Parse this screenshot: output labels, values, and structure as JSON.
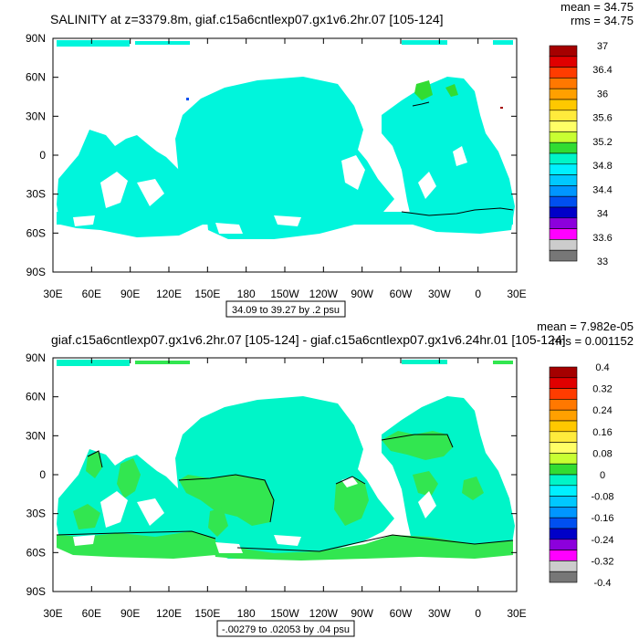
{
  "chart_data": [
    {
      "type": "heatmap",
      "title": "SALINITY at z=3379.8m, giaf.c15a6cntlexp07.gx1v6.2hr.07 [105-124]",
      "stats": {
        "mean": "mean = 34.75",
        "rms": "rms = 34.75"
      },
      "x_ticks": [
        "30E",
        "60E",
        "90E",
        "120E",
        "150E",
        "180",
        "150W",
        "120W",
        "90W",
        "60W",
        "30W",
        "0",
        "30E"
      ],
      "y_ticks": [
        "90N",
        "60N",
        "30N",
        "0",
        "30S",
        "60S",
        "90S"
      ],
      "xlim_deg": [
        30,
        390
      ],
      "ylim_deg": [
        -90,
        90
      ],
      "contour_info": "34.09 to 39.27 by .2 psu",
      "colorbar": {
        "labels": [
          "37",
          "36.4",
          "36",
          "35.6",
          "35.2",
          "34.8",
          "34.4",
          "34",
          "33.6",
          "33"
        ],
        "colors": [
          "#a50000",
          "#e00000",
          "#ff3c00",
          "#ff7800",
          "#ffa000",
          "#ffc800",
          "#ffeb3c",
          "#ffff66",
          "#c8ff32",
          "#32dc32",
          "#00f5c8",
          "#00f0ff",
          "#00c8ff",
          "#0096ff",
          "#0050f0",
          "#0000c8",
          "#8c00dc",
          "#ff00ff",
          "#cccccc",
          "#777777"
        ]
      },
      "dominant_value": 34.8,
      "dominant_color": "#00f5dc"
    },
    {
      "type": "heatmap",
      "title": "giaf.c15a6cntlexp07.gx1v6.2hr.07 [105-124] - giaf.c15a6cntlexp07.gx1v6.24hr.01 [105-124]",
      "stats": {
        "mean": "mean = 7.982e-05",
        "rms": "rms = 0.001152"
      },
      "x_ticks": [
        "30E",
        "60E",
        "90E",
        "120E",
        "150E",
        "180",
        "150W",
        "120W",
        "90W",
        "60W",
        "30W",
        "0",
        "30E"
      ],
      "y_ticks": [
        "90N",
        "60N",
        "30N",
        "0",
        "30S",
        "60S",
        "90S"
      ],
      "xlim_deg": [
        30,
        390
      ],
      "ylim_deg": [
        -90,
        90
      ],
      "contour_info": "-.00279 to .02053 by .04 psu",
      "colorbar": {
        "labels": [
          "0.4",
          "0.32",
          "0.24",
          "0.16",
          "0.08",
          "0",
          "-0.08",
          "-0.16",
          "-0.24",
          "-0.32",
          "-0.4"
        ],
        "colors": [
          "#a50000",
          "#e00000",
          "#ff3c00",
          "#ff7800",
          "#ffa000",
          "#ffc800",
          "#ffeb3c",
          "#ffff66",
          "#c8ff32",
          "#32dc32",
          "#00f5c8",
          "#00f0ff",
          "#00c8ff",
          "#0096ff",
          "#0050f0",
          "#0000c8",
          "#8c00dc",
          "#ff00ff",
          "#cccccc",
          "#777777"
        ]
      },
      "positive_color": "#32e650",
      "zero_color": "#00f5c8"
    }
  ]
}
